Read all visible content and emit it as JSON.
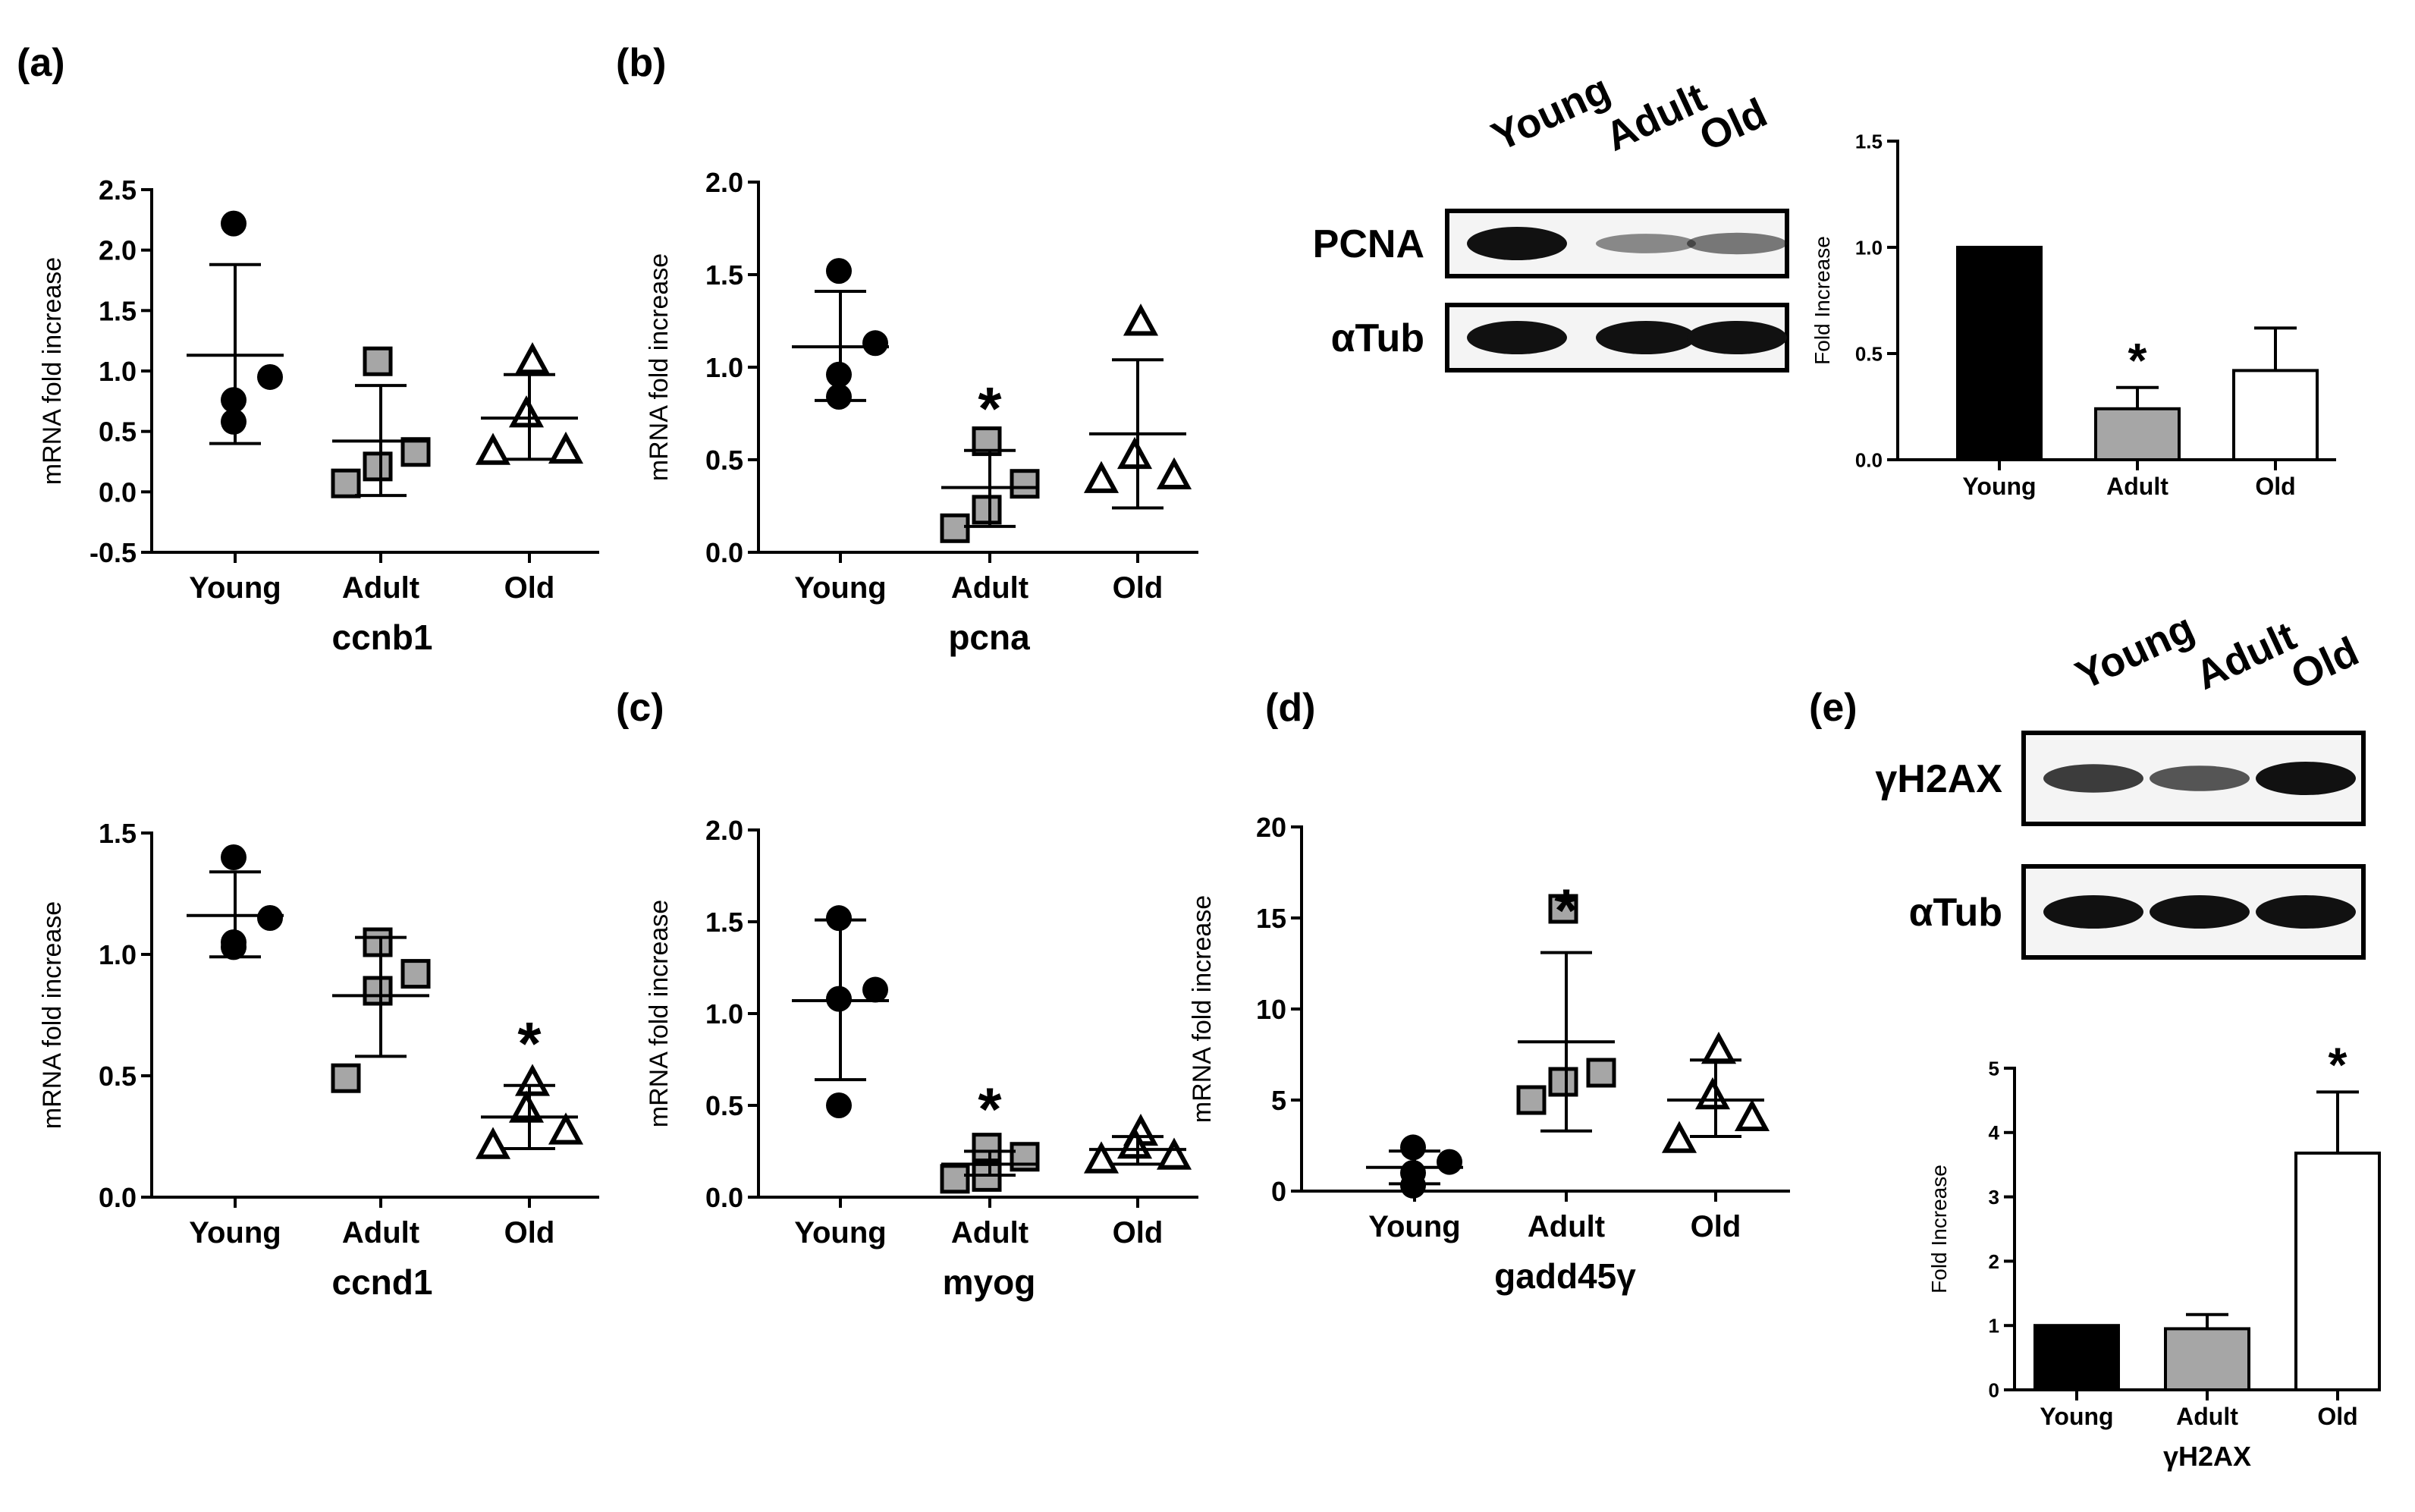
{
  "panel_labels": [
    "(a)",
    "(b)",
    "(c)",
    "(d)",
    "(e)"
  ],
  "groups": [
    "Young",
    "Adult",
    "Old"
  ],
  "colors": {
    "young": "#000000",
    "adult": "#a6a6a6",
    "old": "#ffffff"
  },
  "blots": [
    {
      "lanes": [
        "Young",
        "Adult",
        "Old"
      ],
      "rows": [
        {
          "label": "PCNA",
          "intensity": [
            1.0,
            0.3,
            0.4
          ]
        },
        {
          "label": "αTub",
          "intensity": [
            1.0,
            1.0,
            1.0
          ]
        }
      ]
    },
    {
      "lanes": [
        "Young",
        "Adult",
        "Old"
      ],
      "rows": [
        {
          "label": "γH2AX",
          "intensity": [
            0.75,
            0.6,
            1.0
          ]
        },
        {
          "label": "αTub",
          "intensity": [
            1.0,
            1.0,
            1.0
          ]
        }
      ]
    }
  ],
  "chart_data": [
    {
      "id": "ccnb1",
      "type": "scatter",
      "title": "",
      "xlabel": "ccnb1",
      "ylabel": "mRNA fold increase",
      "ylim": [
        -0.5,
        2.5
      ],
      "yticks": [
        "-0.5",
        "0.0",
        "0.5",
        "1.0",
        "1.5",
        "2.0",
        "2.5"
      ],
      "categories": [
        "Young",
        "Adult",
        "Old"
      ],
      "series": [
        {
          "name": "Young",
          "points": [
            2.22,
            0.95,
            0.76,
            0.58
          ],
          "mean": 1.13,
          "sd_low": 0.4,
          "sd_high": 1.88
        },
        {
          "name": "Adult",
          "points": [
            1.08,
            0.33,
            0.21,
            0.07
          ],
          "mean": 0.42,
          "sd_low": -0.03,
          "sd_high": 0.88
        },
        {
          "name": "Old",
          "points": [
            1.08,
            0.64,
            0.34,
            0.33
          ],
          "mean": 0.61,
          "sd_low": 0.27,
          "sd_high": 0.97
        }
      ],
      "significance": [
        "",
        "",
        ""
      ]
    },
    {
      "id": "pcna",
      "type": "scatter",
      "title": "",
      "xlabel": "pcna",
      "ylabel": "mRNA fold increase",
      "ylim": [
        0.0,
        2.0
      ],
      "yticks": [
        "0.0",
        "0.5",
        "1.0",
        "1.5",
        "2.0"
      ],
      "categories": [
        "Young",
        "Adult",
        "Old"
      ],
      "series": [
        {
          "name": "Young",
          "points": [
            1.52,
            1.13,
            0.96,
            0.84
          ],
          "mean": 1.11,
          "sd_low": 0.82,
          "sd_high": 1.41
        },
        {
          "name": "Adult",
          "points": [
            0.6,
            0.37,
            0.23,
            0.13
          ],
          "mean": 0.35,
          "sd_low": 0.14,
          "sd_high": 0.55
        },
        {
          "name": "Old",
          "points": [
            1.24,
            0.52,
            0.41,
            0.39
          ],
          "mean": 0.64,
          "sd_low": 0.24,
          "sd_high": 1.04
        }
      ],
      "significance": [
        "",
        "*",
        ""
      ]
    },
    {
      "id": "pcna-protein",
      "type": "bar",
      "title": "",
      "xlabel": "",
      "ylabel": "Fold Increase",
      "ylim": [
        0.0,
        1.5
      ],
      "yticks": [
        "0.0",
        "0.5",
        "1.0",
        "1.5"
      ],
      "categories": [
        "Young",
        "Adult",
        "Old"
      ],
      "values": [
        1.0,
        0.24,
        0.42
      ],
      "errors": [
        0.0,
        0.1,
        0.2
      ],
      "significance": [
        "",
        "*",
        ""
      ]
    },
    {
      "id": "ccnd1",
      "type": "scatter",
      "title": "",
      "xlabel": "ccnd1",
      "ylabel": "mRNA fold increase",
      "ylim": [
        0.0,
        1.5
      ],
      "yticks": [
        "0.0",
        "0.5",
        "1.0",
        "1.5"
      ],
      "categories": [
        "Young",
        "Adult",
        "Old"
      ],
      "series": [
        {
          "name": "Young",
          "points": [
            1.4,
            1.15,
            1.05,
            1.03
          ],
          "mean": 1.16,
          "sd_low": 0.99,
          "sd_high": 1.34
        },
        {
          "name": "Adult",
          "points": [
            1.05,
            0.92,
            0.85,
            0.49
          ],
          "mean": 0.83,
          "sd_low": 0.58,
          "sd_high": 1.07
        },
        {
          "name": "Old",
          "points": [
            0.47,
            0.36,
            0.27,
            0.21
          ],
          "mean": 0.33,
          "sd_low": 0.2,
          "sd_high": 0.46
        }
      ],
      "significance": [
        "",
        "",
        "*"
      ]
    },
    {
      "id": "myog",
      "type": "scatter",
      "title": "",
      "xlabel": "myog",
      "ylabel": "mRNA fold increase",
      "ylim": [
        0.0,
        2.0
      ],
      "yticks": [
        "0.0",
        "0.5",
        "1.0",
        "1.5",
        "2.0"
      ],
      "categories": [
        "Young",
        "Adult",
        "Old"
      ],
      "series": [
        {
          "name": "Young",
          "points": [
            1.52,
            1.13,
            1.08,
            0.5
          ],
          "mean": 1.07,
          "sd_low": 0.64,
          "sd_high": 1.51
        },
        {
          "name": "Adult",
          "points": [
            0.27,
            0.22,
            0.11,
            0.1
          ],
          "mean": 0.18,
          "sd_low": 0.12,
          "sd_high": 0.25
        },
        {
          "name": "Old",
          "points": [
            0.35,
            0.28,
            0.22,
            0.2
          ],
          "mean": 0.26,
          "sd_low": 0.18,
          "sd_high": 0.33
        }
      ],
      "significance": [
        "",
        "*",
        ""
      ]
    },
    {
      "id": "gadd45g",
      "type": "scatter",
      "title": "",
      "xlabel": "gadd45γ",
      "ylabel": "mRNA fold increase",
      "ylim": [
        0,
        20
      ],
      "yticks": [
        "0",
        "5",
        "10",
        "15",
        "20"
      ],
      "categories": [
        "Young",
        "Adult",
        "Old"
      ],
      "series": [
        {
          "name": "Young",
          "points": [
            2.4,
            1.6,
            1.0,
            0.3
          ],
          "mean": 1.3,
          "sd_low": 0.4,
          "sd_high": 2.2
        },
        {
          "name": "Adult",
          "points": [
            15.5,
            6.5,
            6.0,
            5.0
          ],
          "mean": 8.2,
          "sd_low": 3.3,
          "sd_high": 13.1
        },
        {
          "name": "Old",
          "points": [
            7.7,
            5.2,
            4.0,
            2.8
          ],
          "mean": 5.0,
          "sd_low": 3.0,
          "sd_high": 7.2
        }
      ],
      "significance": [
        "",
        "*",
        ""
      ]
    },
    {
      "id": "gh2ax-protein",
      "type": "bar",
      "title": "",
      "xlabel": "γH2AX",
      "ylabel": "Fold Increase",
      "ylim": [
        0,
        5
      ],
      "yticks": [
        "0",
        "1",
        "2",
        "3",
        "4",
        "5"
      ],
      "categories": [
        "Young",
        "Adult",
        "Old"
      ],
      "values": [
        1.0,
        0.95,
        3.68
      ],
      "errors": [
        0.0,
        0.22,
        0.95
      ],
      "significance": [
        "",
        "",
        "*"
      ]
    }
  ]
}
